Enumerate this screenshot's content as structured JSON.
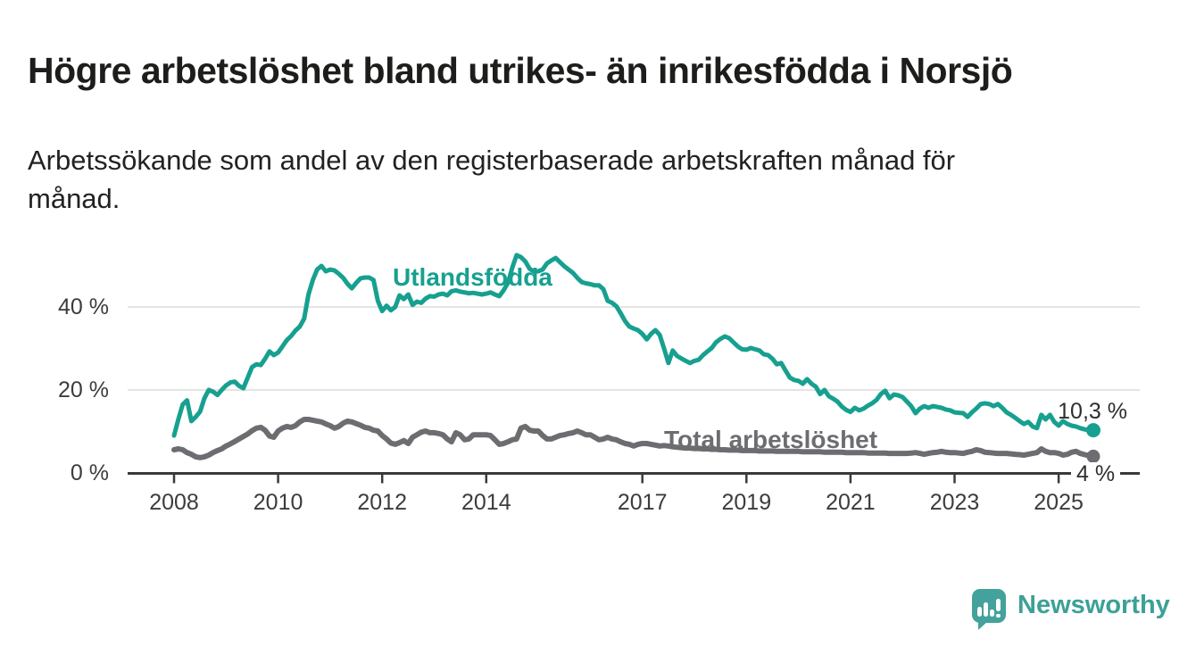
{
  "header": {
    "title": "Högre arbetslöshet bland utrikes- än inrikesfödda i Norsjö",
    "subtitle": "Arbetssökande som andel av den registerbaserade arbetskraften månad för månad."
  },
  "chart_data": {
    "type": "line",
    "title": "Högre arbetslöshet bland utrikes- än inrikesfödda i Norsjö",
    "unit": "%",
    "frequency": "monthly",
    "x_start": "2008-01",
    "x_end": "2025-09",
    "ylim": [
      0,
      56
    ],
    "grid": "horizontal",
    "legend_position": "inline-labels",
    "yticks": [
      {
        "value": 0,
        "label": "0 %"
      },
      {
        "value": 20,
        "label": "20 %"
      },
      {
        "value": 40,
        "label": "40 %"
      }
    ],
    "xticks": [
      {
        "year": 2008,
        "label": "2008"
      },
      {
        "year": 2010,
        "label": "2010"
      },
      {
        "year": 2012,
        "label": "2012"
      },
      {
        "year": 2014,
        "label": "2014"
      },
      {
        "year": 2017,
        "label": "2017"
      },
      {
        "year": 2019,
        "label": "2019"
      },
      {
        "year": 2021,
        "label": "2021"
      },
      {
        "year": 2023,
        "label": "2023"
      },
      {
        "year": 2025,
        "label": "2025"
      }
    ],
    "series": [
      {
        "name": "Utlandsfödda",
        "color": "#17a08f",
        "end_label": "10,3 %",
        "end_value": 10.3,
        "values": [
          9.0,
          13.0,
          16.5,
          17.5,
          12.5,
          13.5,
          14.8,
          18.0,
          20.0,
          19.6,
          18.8,
          20.0,
          21.1,
          21.8,
          22.0,
          21.0,
          20.4,
          23.0,
          25.5,
          26.2,
          26.0,
          27.5,
          29.3,
          28.4,
          29.0,
          30.5,
          32.0,
          33.0,
          34.3,
          35.3,
          37.2,
          43.0,
          46.5,
          49.0,
          49.9,
          48.6,
          49.0,
          48.8,
          48.0,
          47.0,
          45.6,
          44.5,
          45.8,
          46.9,
          47.1,
          47.1,
          46.5,
          41.5,
          39.0,
          40.3,
          39.2,
          40.0,
          42.8,
          41.9,
          43.0,
          40.5,
          41.3,
          41.0,
          42.0,
          42.6,
          42.5,
          43.0,
          43.2,
          42.8,
          43.8,
          44.0,
          43.7,
          43.5,
          43.3,
          43.4,
          43.2,
          43.0,
          43.2,
          43.5,
          43.0,
          42.6,
          44.0,
          45.8,
          49.5,
          52.5,
          52.0,
          51.0,
          49.2,
          48.5,
          48.6,
          49.0,
          50.5,
          51.2,
          51.8,
          50.8,
          49.8,
          49.0,
          48.2,
          47.0,
          46.0,
          45.7,
          45.5,
          45.2,
          45.2,
          44.3,
          41.5,
          41.0,
          40.2,
          38.5,
          36.6,
          35.3,
          34.8,
          34.4,
          33.5,
          32.2,
          33.5,
          34.4,
          33.3,
          30.0,
          26.5,
          29.5,
          28.2,
          27.6,
          27.0,
          26.5,
          27.0,
          27.3,
          28.4,
          29.3,
          30.1,
          31.5,
          32.3,
          32.9,
          32.5,
          31.5,
          30.5,
          29.8,
          29.7,
          30.1,
          29.8,
          29.5,
          28.6,
          28.4,
          27.5,
          26.2,
          26.5,
          24.7,
          23.0,
          22.4,
          22.2,
          21.5,
          22.6,
          21.5,
          20.8,
          19.0,
          20.0,
          18.5,
          17.9,
          17.2,
          16.0,
          15.2,
          14.7,
          15.7,
          15.1,
          15.5,
          16.2,
          16.8,
          17.6,
          19.0,
          19.8,
          18.0,
          18.9,
          18.7,
          18.3,
          17.2,
          16.1,
          14.4,
          15.5,
          16.1,
          15.7,
          16.1,
          15.9,
          15.7,
          15.3,
          15.1,
          14.6,
          14.5,
          14.4,
          13.5,
          14.6,
          15.5,
          16.6,
          16.8,
          16.6,
          16.1,
          16.6,
          15.7,
          14.6,
          14.0,
          13.3,
          12.5,
          11.8,
          12.3,
          11.2,
          10.8,
          14.0,
          12.9,
          14.0,
          12.3,
          11.4,
          12.5,
          11.8,
          11.4,
          11.2,
          10.8,
          10.5,
          10.4,
          10.3
        ]
      },
      {
        "name": "Total arbetslöshet",
        "color": "#6d6d71",
        "end_label": "4 %",
        "end_value": 4.0,
        "values": [
          5.6,
          5.8,
          5.6,
          4.9,
          4.5,
          3.9,
          3.7,
          3.9,
          4.3,
          4.9,
          5.4,
          5.8,
          6.5,
          7.0,
          7.6,
          8.2,
          8.8,
          9.4,
          10.2,
          10.8,
          11.0,
          10.3,
          8.9,
          8.6,
          10.1,
          10.8,
          11.2,
          11.0,
          11.4,
          12.3,
          12.9,
          12.9,
          12.7,
          12.5,
          12.3,
          11.8,
          11.4,
          10.8,
          11.2,
          12.0,
          12.5,
          12.3,
          11.9,
          11.5,
          11.0,
          10.8,
          10.3,
          10.1,
          9.0,
          8.2,
          7.2,
          6.9,
          7.3,
          7.8,
          7.1,
          8.6,
          9.2,
          9.8,
          10.1,
          9.7,
          9.7,
          9.5,
          9.2,
          8.2,
          7.5,
          9.7,
          9.2,
          8.0,
          8.2,
          9.2,
          9.2,
          9.2,
          9.2,
          9.0,
          8.0,
          6.9,
          7.1,
          7.5,
          8.0,
          8.2,
          10.8,
          11.2,
          10.3,
          10.1,
          10.1,
          9.0,
          8.2,
          8.2,
          8.6,
          9.0,
          9.2,
          9.5,
          9.7,
          10.1,
          9.7,
          9.2,
          9.2,
          8.6,
          8.0,
          8.2,
          8.6,
          8.2,
          8.0,
          7.5,
          7.1,
          6.9,
          6.5,
          6.9,
          7.1,
          7.1,
          6.9,
          6.7,
          6.5,
          6.6,
          6.5,
          6.3,
          6.2,
          6.1,
          6.0,
          6.0,
          5.9,
          5.9,
          5.8,
          5.8,
          5.7,
          5.7,
          5.6,
          5.6,
          5.5,
          5.5,
          5.5,
          5.4,
          5.4,
          5.4,
          5.4,
          5.3,
          5.3,
          5.3,
          5.3,
          5.2,
          5.2,
          5.2,
          5.2,
          5.2,
          5.2,
          5.1,
          5.1,
          5.1,
          5.1,
          5.1,
          5.0,
          5.0,
          5.0,
          5.0,
          5.0,
          4.9,
          4.9,
          4.9,
          4.9,
          4.9,
          4.8,
          4.8,
          4.8,
          4.8,
          4.8,
          4.7,
          4.7,
          4.7,
          4.7,
          4.7,
          4.8,
          4.9,
          4.7,
          4.5,
          4.7,
          4.9,
          5.0,
          5.2,
          5.0,
          4.9,
          4.9,
          4.8,
          4.7,
          5.0,
          5.2,
          5.6,
          5.4,
          5.0,
          4.9,
          4.8,
          4.7,
          4.7,
          4.7,
          4.6,
          4.5,
          4.4,
          4.3,
          4.5,
          4.7,
          4.9,
          5.8,
          5.2,
          4.9,
          4.9,
          4.7,
          4.3,
          4.5,
          5.0,
          5.2,
          4.7,
          4.4,
          4.2,
          4.0
        ]
      }
    ]
  },
  "footer": {
    "brand": "Newsworthy"
  }
}
